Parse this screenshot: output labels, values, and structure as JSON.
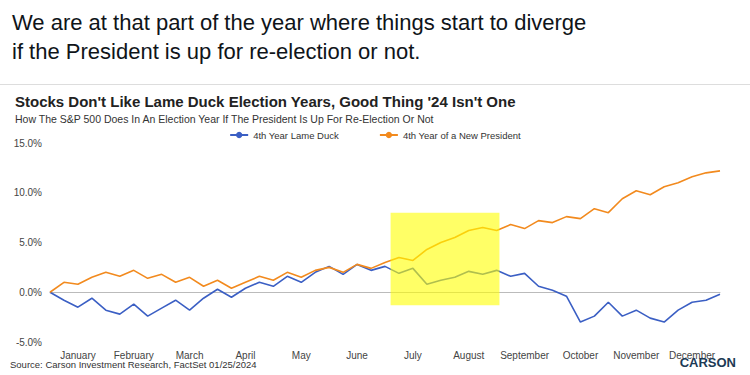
{
  "post": {
    "text_lines": [
      "We are at that part of the year where things start to diverge",
      "if the President is up for re-election or not."
    ]
  },
  "chart_data": {
    "type": "line",
    "title": "Stocks Don't Like Lame Duck Election Years, Good Thing '24 Isn't One",
    "subtitle": "How The S&P 500 Does In An Election Year If The President Is Up For Re-Election Or Not",
    "source": "Source: Carson Investment Research, FactSet 01/25/2024",
    "logo": "CARSON",
    "x": [
      0,
      0.25,
      0.5,
      0.75,
      1,
      1.25,
      1.5,
      1.75,
      2,
      2.25,
      2.5,
      2.75,
      3,
      3.25,
      3.5,
      3.75,
      4,
      4.25,
      4.5,
      4.75,
      5,
      5.25,
      5.5,
      5.75,
      6,
      6.25,
      6.5,
      6.75,
      7,
      7.25,
      7.5,
      7.75,
      8,
      8.25,
      8.5,
      8.75,
      9,
      9.25,
      9.5,
      9.75,
      10,
      10.25,
      10.5,
      10.75,
      11,
      11.25,
      11.5,
      11.75,
      12
    ],
    "xlim": [
      0,
      12
    ],
    "xticks": [
      {
        "value": 0.5,
        "label": "January"
      },
      {
        "value": 1.5,
        "label": "February"
      },
      {
        "value": 2.5,
        "label": "March"
      },
      {
        "value": 3.5,
        "label": "April"
      },
      {
        "value": 4.5,
        "label": "May"
      },
      {
        "value": 5.5,
        "label": "June"
      },
      {
        "value": 6.5,
        "label": "July"
      },
      {
        "value": 7.5,
        "label": "August"
      },
      {
        "value": 8.5,
        "label": "September"
      },
      {
        "value": 9.5,
        "label": "October"
      },
      {
        "value": 10.5,
        "label": "November"
      },
      {
        "value": 11.5,
        "label": "December"
      }
    ],
    "ylim": [
      -5,
      15
    ],
    "yticks": [
      {
        "value": -5,
        "label": "-5.0%"
      },
      {
        "value": 0,
        "label": "0.0%"
      },
      {
        "value": 5,
        "label": "5.0%"
      },
      {
        "value": 10,
        "label": "10.0%"
      },
      {
        "value": 15,
        "label": "15.0%"
      }
    ],
    "grid": false,
    "legend": "top",
    "series": [
      {
        "name": "4th Year Lame Duck",
        "color": "#3b5fc4",
        "values": [
          0,
          -0.8,
          -1.5,
          -0.6,
          -1.8,
          -2.2,
          -1.2,
          -2.4,
          -1.6,
          -0.8,
          -1.8,
          -0.6,
          0.3,
          -0.5,
          0.4,
          1.0,
          0.6,
          1.6,
          1.0,
          2.0,
          2.6,
          1.8,
          2.8,
          2.2,
          2.6,
          1.9,
          2.4,
          0.8,
          1.2,
          1.5,
          2.1,
          1.8,
          2.2,
          1.6,
          1.9,
          0.6,
          0.2,
          -0.4,
          -3.0,
          -2.4,
          -1.0,
          -2.4,
          -1.8,
          -2.6,
          -3.0,
          -1.8,
          -1.0,
          -0.8,
          -0.2
        ]
      },
      {
        "name": "4th Year of a New President",
        "color": "#f28a1e",
        "values": [
          0,
          1.0,
          0.8,
          1.5,
          2.0,
          1.6,
          2.2,
          1.4,
          1.8,
          1.0,
          1.5,
          0.6,
          1.2,
          0.4,
          1.0,
          1.6,
          1.2,
          2.0,
          1.5,
          2.2,
          2.5,
          2.0,
          2.8,
          2.4,
          3.0,
          3.5,
          3.2,
          4.3,
          5.0,
          5.5,
          6.2,
          6.5,
          6.2,
          6.8,
          6.4,
          7.2,
          7.0,
          7.6,
          7.4,
          8.4,
          8.0,
          9.4,
          10.2,
          9.8,
          10.6,
          11.0,
          11.6,
          12.0,
          12.2
        ]
      }
    ],
    "highlight": {
      "x": [
        6.1,
        8.05
      ],
      "y": [
        -1.3,
        8.0
      ],
      "color": "#ffff00"
    }
  }
}
